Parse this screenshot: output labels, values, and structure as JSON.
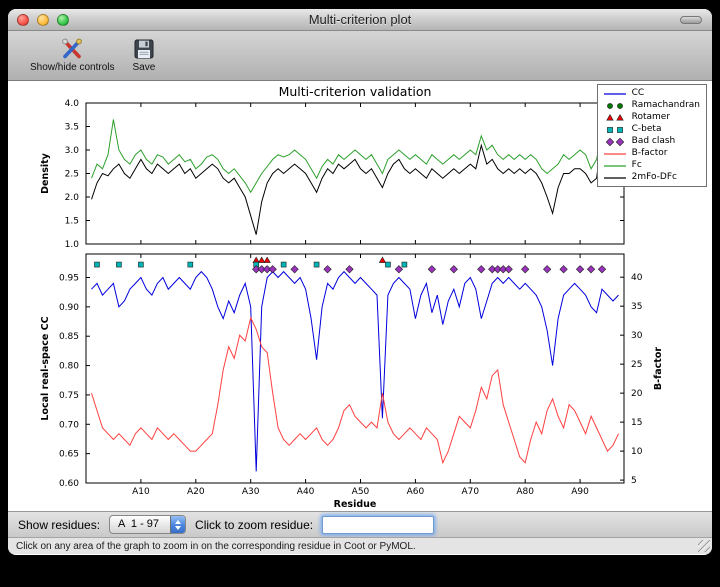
{
  "window": {
    "title": "Multi-criterion plot"
  },
  "toolbar": {
    "items": [
      {
        "label": "Show/hide controls",
        "icon": "tools-icon"
      },
      {
        "label": "Save",
        "icon": "save-icon"
      }
    ]
  },
  "controls": {
    "show_residues_label": "Show residues:",
    "residue_range_value": "A  1 - 97",
    "zoom_residue_label": "Click to zoom residue:",
    "zoom_input_value": ""
  },
  "status_bar": {
    "text": "Click on any area of the graph to zoom in on the corresponding residue in Coot or PyMOL."
  },
  "chart_data": {
    "type": "line",
    "title": "Multi-criterion validation",
    "x": {
      "label": "Residue",
      "range": [
        0,
        98
      ],
      "tick_positions": [
        10,
        20,
        30,
        40,
        50,
        60,
        70,
        80,
        90
      ],
      "tick_labels": [
        "A10",
        "A20",
        "A30",
        "A40",
        "A50",
        "A60",
        "A70",
        "A80",
        "A90"
      ]
    },
    "legend": [
      {
        "label": "CC",
        "glyph": "line",
        "color": "#0000dd"
      },
      {
        "label": "Ramachandran",
        "glyph": "circle",
        "color": "#007700"
      },
      {
        "label": "Rotamer",
        "glyph": "triangle",
        "color": "#ee0000"
      },
      {
        "label": "C-beta",
        "glyph": "square",
        "color": "#00b5b5"
      },
      {
        "label": "Bad clash",
        "glyph": "diamond",
        "color": "#9933bb"
      },
      {
        "label": "B-factor",
        "glyph": "line",
        "color": "#ff4040"
      },
      {
        "label": "Fc",
        "glyph": "line",
        "color": "#2ca02c"
      },
      {
        "label": "2mFo-DFc",
        "glyph": "line",
        "color": "#000000"
      }
    ],
    "top_plot": {
      "ylabel": "Density",
      "ylim": [
        1.0,
        4.0
      ],
      "yticks": [
        1.0,
        1.5,
        2.0,
        2.5,
        3.0,
        3.5,
        4.0
      ],
      "ytick_labels": [
        "1.0",
        "1.5",
        "2.0",
        "2.5",
        "3.0",
        "3.5",
        "4.0"
      ],
      "series": [
        {
          "name": "Fc",
          "color": "#2ca02c",
          "values": [
            2.4,
            2.7,
            2.6,
            2.9,
            3.65,
            3.0,
            2.8,
            2.7,
            2.9,
            3.0,
            2.8,
            2.7,
            2.9,
            2.85,
            2.7,
            2.8,
            2.9,
            2.75,
            2.8,
            2.6,
            2.7,
            2.85,
            2.9,
            2.8,
            2.6,
            2.5,
            2.6,
            2.45,
            2.3,
            2.1,
            2.3,
            2.5,
            2.65,
            2.8,
            2.9,
            2.85,
            2.9,
            3.0,
            2.9,
            2.8,
            2.6,
            2.4,
            2.65,
            2.8,
            2.7,
            2.9,
            2.8,
            2.9,
            3.0,
            2.9,
            2.8,
            2.9,
            2.7,
            2.5,
            2.8,
            2.9,
            3.0,
            2.9,
            2.8,
            2.9,
            2.8,
            2.7,
            2.9,
            2.8,
            2.7,
            2.8,
            2.9,
            2.8,
            2.9,
            3.0,
            2.9,
            3.3,
            3.0,
            3.1,
            2.9,
            2.8,
            2.9,
            2.8,
            2.9,
            2.8,
            2.9,
            2.8,
            2.6,
            2.5,
            2.6,
            2.7,
            2.9,
            2.8,
            2.9,
            3.0,
            2.9,
            2.6,
            2.8,
            3.4,
            2.9,
            3.0,
            3.1
          ]
        },
        {
          "name": "2mFo-DFc",
          "color": "#000000",
          "values": [
            1.95,
            2.3,
            2.5,
            2.45,
            2.6,
            2.7,
            2.5,
            2.4,
            2.6,
            2.8,
            2.6,
            2.5,
            2.7,
            2.6,
            2.5,
            2.6,
            2.7,
            2.5,
            2.6,
            2.4,
            2.5,
            2.6,
            2.7,
            2.6,
            2.4,
            2.3,
            2.4,
            2.2,
            2.0,
            1.6,
            1.2,
            1.9,
            2.3,
            2.5,
            2.6,
            2.5,
            2.6,
            2.7,
            2.6,
            2.5,
            2.3,
            2.1,
            2.4,
            2.6,
            2.5,
            2.7,
            2.6,
            2.7,
            2.8,
            2.6,
            2.5,
            2.6,
            2.4,
            2.2,
            2.5,
            2.7,
            2.8,
            2.6,
            2.5,
            2.6,
            2.5,
            2.4,
            2.6,
            2.5,
            2.4,
            2.5,
            2.6,
            2.5,
            2.6,
            2.7,
            2.6,
            3.1,
            2.7,
            2.8,
            2.6,
            2.5,
            2.6,
            2.5,
            2.6,
            2.5,
            2.6,
            2.5,
            2.3,
            2.0,
            1.65,
            2.2,
            2.5,
            2.5,
            2.6,
            2.6,
            2.5,
            2.3,
            2.4,
            3.3,
            2.6,
            2.7,
            2.9
          ]
        }
      ]
    },
    "bottom_plot": {
      "ylabel_left": "Local real-space CC",
      "ylim_left": [
        0.6,
        0.99
      ],
      "yticks_left": [
        0.6,
        0.65,
        0.7,
        0.75,
        0.8,
        0.85,
        0.9,
        0.95
      ],
      "ytick_labels_left": [
        "0.60",
        "0.65",
        "0.70",
        "0.75",
        "0.80",
        "0.85",
        "0.90",
        "0.95"
      ],
      "ylabel_right": "B-factor",
      "ylim_right": [
        4.5,
        44
      ],
      "yticks_right": [
        5,
        10,
        15,
        20,
        25,
        30,
        35,
        40
      ],
      "ytick_labels_right": [
        "5",
        "10",
        "15",
        "20",
        "25",
        "30",
        "35",
        "40"
      ],
      "series_left": [
        {
          "name": "CC",
          "color": "#0000dd",
          "values": [
            0.93,
            0.94,
            0.92,
            0.93,
            0.94,
            0.9,
            0.91,
            0.93,
            0.94,
            0.95,
            0.93,
            0.92,
            0.94,
            0.95,
            0.93,
            0.94,
            0.95,
            0.94,
            0.93,
            0.95,
            0.96,
            0.95,
            0.93,
            0.9,
            0.88,
            0.91,
            0.89,
            0.92,
            0.94,
            0.9,
            0.62,
            0.9,
            0.95,
            0.96,
            0.95,
            0.96,
            0.95,
            0.94,
            0.95,
            0.93,
            0.88,
            0.81,
            0.9,
            0.94,
            0.93,
            0.95,
            0.96,
            0.95,
            0.94,
            0.95,
            0.94,
            0.93,
            0.92,
            0.71,
            0.92,
            0.94,
            0.95,
            0.94,
            0.93,
            0.88,
            0.92,
            0.94,
            0.89,
            0.92,
            0.87,
            0.91,
            0.93,
            0.9,
            0.94,
            0.95,
            0.93,
            0.88,
            0.91,
            0.94,
            0.95,
            0.94,
            0.95,
            0.94,
            0.93,
            0.94,
            0.93,
            0.92,
            0.9,
            0.86,
            0.8,
            0.88,
            0.92,
            0.93,
            0.94,
            0.93,
            0.92,
            0.9,
            0.89,
            0.93,
            0.92,
            0.91,
            0.92
          ]
        }
      ],
      "series_right": [
        {
          "name": "B-factor",
          "color": "#ff4040",
          "values": [
            20,
            17,
            14,
            13,
            12,
            13,
            12,
            11,
            13,
            14,
            13,
            12,
            14,
            13,
            12,
            13,
            12,
            11,
            10,
            10,
            11,
            12,
            13,
            18,
            24,
            28,
            26,
            30,
            29,
            33,
            31,
            28,
            27,
            20,
            14,
            12,
            11,
            12,
            13,
            12,
            13,
            14,
            12,
            11,
            12,
            14,
            17,
            18,
            16,
            15,
            14,
            15,
            14,
            20,
            15,
            13,
            12,
            13,
            14,
            13,
            12,
            14,
            13,
            12,
            8,
            10,
            13,
            16,
            15,
            14,
            17,
            21,
            19,
            23,
            24,
            18,
            15,
            12,
            9,
            8,
            12,
            15,
            13,
            17,
            19,
            16,
            14,
            18,
            17,
            15,
            13,
            16,
            14,
            12,
            10,
            11,
            13
          ]
        }
      ],
      "markers": [
        {
          "name": "Rotamer",
          "shape": "triangle",
          "color": "#ee0000",
          "y": 0.979,
          "residues": [
            31,
            32,
            33,
            54
          ]
        },
        {
          "name": "C-beta",
          "shape": "square",
          "color": "#00b5b5",
          "y": 0.972,
          "residues": [
            2,
            6,
            10,
            19,
            31,
            36,
            42,
            55,
            58
          ]
        },
        {
          "name": "Bad clash",
          "shape": "diamond",
          "color": "#9933bb",
          "y": 0.964,
          "residues": [
            31,
            32,
            33,
            34,
            38,
            44,
            48,
            57,
            63,
            67,
            72,
            74,
            75,
            76,
            77,
            80,
            84,
            87,
            90,
            92,
            94
          ]
        }
      ]
    }
  }
}
